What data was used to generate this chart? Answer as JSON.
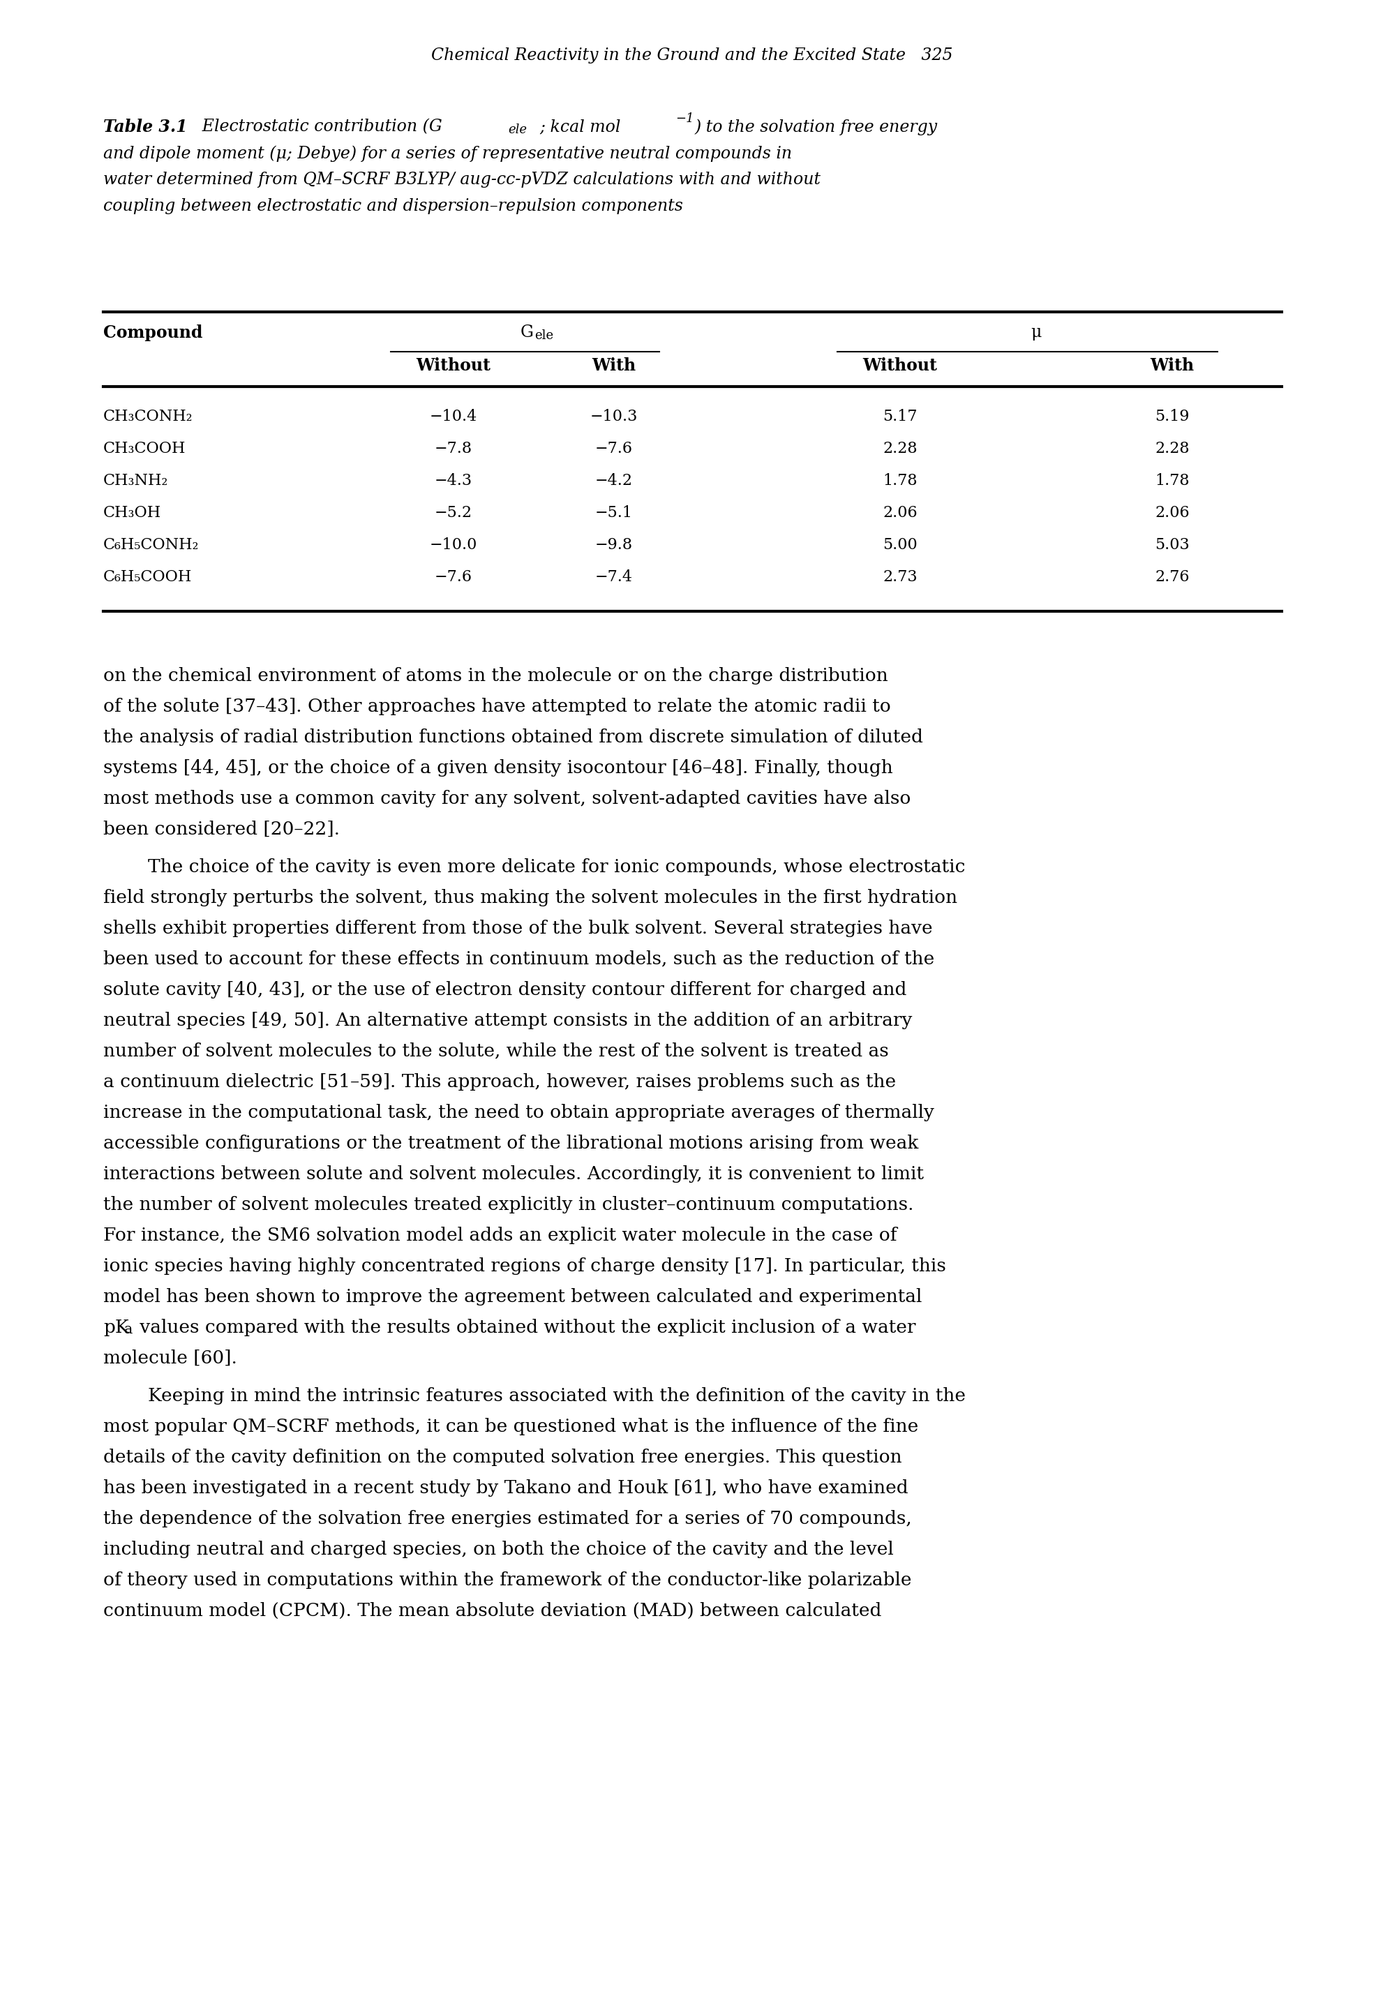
{
  "page_header": "Chemical Reactivity in the Ground and the Excited State   325",
  "compounds": [
    "CH₃CONH₂",
    "CH₃COOH",
    "CH₃NH₂",
    "CH₃OH",
    "C₆H₅CONH₂",
    "C₆H₅COOH"
  ],
  "g_ele_without": [
    "−10.4",
    "−7.8",
    "−4.3",
    "−5.2",
    "−10.0",
    "−7.6"
  ],
  "g_ele_with": [
    "−10.3",
    "−7.6",
    "−4.2",
    "−5.1",
    "−9.8",
    "−7.4"
  ],
  "mu_without": [
    "5.17",
    "2.28",
    "1.78",
    "2.06",
    "5.00",
    "2.73"
  ],
  "mu_with": [
    "5.19",
    "2.28",
    "1.78",
    "2.06",
    "5.03",
    "2.76"
  ],
  "body_para1_lines": [
    "on the chemical environment of atoms in the molecule or on the charge distribution",
    "of the solute [37–43]. Other approaches have attempted to relate the atomic radii to",
    "the analysis of radial distribution functions obtained from discrete simulation of diluted",
    "systems [44, 45], or the choice of a given density isocontour [46–48]. Finally, though",
    "most methods use a common cavity for any solvent, solvent-adapted cavities have also",
    "been considered [20–22]."
  ],
  "body_para2_lines": [
    "The choice of the cavity is even more delicate for ionic compounds, whose electrostatic",
    "field strongly perturbs the solvent, thus making the solvent molecules in the first hydration",
    "shells exhibit properties different from those of the bulk solvent. Several strategies have",
    "been used to account for these effects in continuum models, such as the reduction of the",
    "solute cavity [40, 43], or the use of electron density contour different for charged and",
    "neutral species [49, 50]. An alternative attempt consists in the addition of an arbitrary",
    "number of solvent molecules to the solute, while the rest of the solvent is treated as",
    "a continuum dielectric [51–59]. This approach, however, raises problems such as the",
    "increase in the computational task, the need to obtain appropriate averages of thermally",
    "accessible configurations or the treatment of the librational motions arising from weak",
    "interactions between solute and solvent molecules. Accordingly, it is convenient to limit",
    "the number of solvent molecules treated explicitly in cluster–continuum computations.",
    "For instance, the SM6 solvation model adds an explicit water molecule in the case of",
    "ionic species having highly concentrated regions of charge density [17]. In particular, this",
    "model has been shown to improve the agreement between calculated and experimental",
    "pKₐ values compared with the results obtained without the explicit inclusion of a water",
    "molecule [60]."
  ],
  "body_para3_lines": [
    "Keeping in mind the intrinsic features associated with the definition of the cavity in the",
    "most popular QM–SCRF methods, it can be questioned what is the influence of the fine",
    "details of the cavity definition on the computed solvation free energies. This question",
    "has been investigated in a recent study by Takano and Houk [61], who have examined",
    "the dependence of the solvation free energies estimated for a series of 70 compounds,",
    "including neutral and charged species, on both the choice of the cavity and the level",
    "of theory used in computations within the framework of the conductor-like polarizable",
    "continuum model (CPCM). The mean absolute deviation (MAD) between calculated"
  ]
}
